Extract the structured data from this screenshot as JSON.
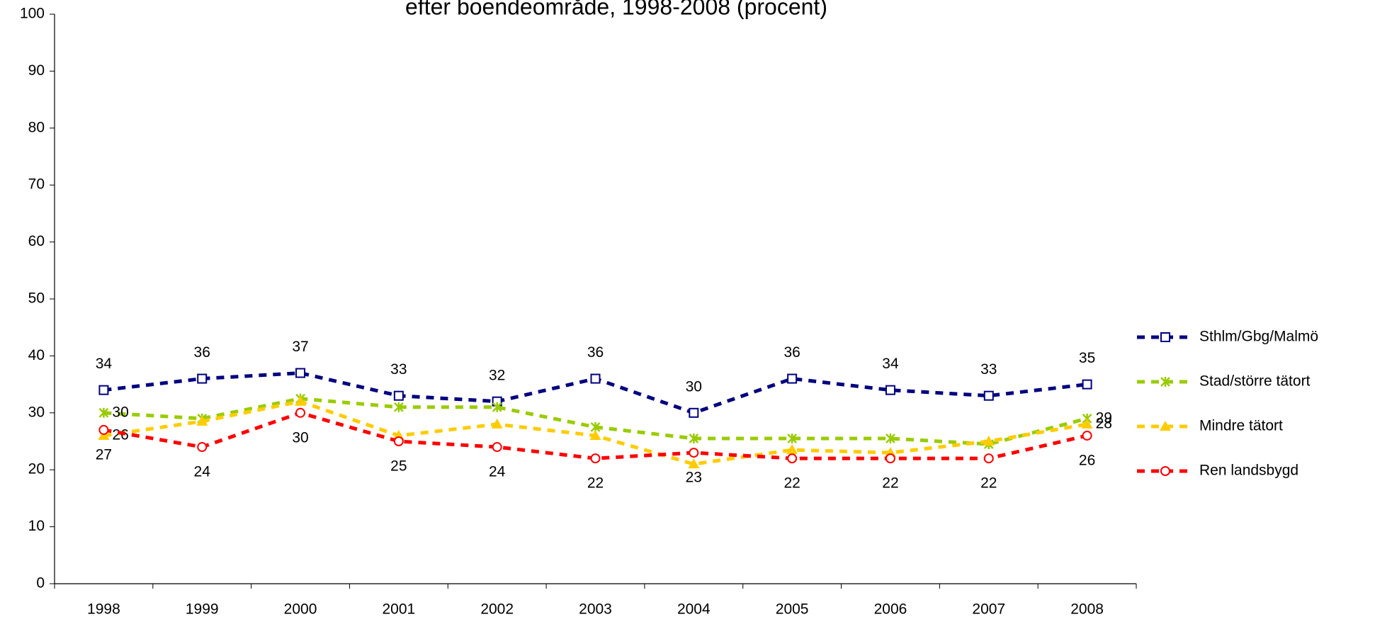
{
  "chart_data": {
    "type": "line",
    "title": "efter boendeområde, 1998-2008 (procent)",
    "categories": [
      "1998",
      "1999",
      "2000",
      "2001",
      "2002",
      "2003",
      "2004",
      "2005",
      "2006",
      "2007",
      "2008"
    ],
    "ylim": [
      0,
      100
    ],
    "yticks": [
      0,
      10,
      20,
      30,
      40,
      50,
      60,
      70,
      80,
      90,
      100
    ],
    "grid": false,
    "legend": "right",
    "series": [
      {
        "name": "Sthlm/Gbg/Malmö",
        "color": "#000080",
        "marker": "square",
        "label_position": "above",
        "labeled": [
          0,
          1,
          2,
          3,
          4,
          5,
          6,
          7,
          8,
          9,
          10
        ],
        "values": [
          34,
          36,
          37,
          33,
          32,
          36,
          30,
          36,
          34,
          33,
          35
        ]
      },
      {
        "name": "Stad/större tätort",
        "color": "#99cc00",
        "marker": "star",
        "label_position": "right",
        "labeled": [
          0,
          10
        ],
        "values": [
          30,
          29,
          32.5,
          31,
          31,
          27.5,
          25.5,
          25.5,
          25.5,
          24.5,
          29
        ]
      },
      {
        "name": "Mindre tätort",
        "color": "#ffcc00",
        "marker": "triangle",
        "label_position": "right",
        "labeled": [
          0,
          10
        ],
        "values": [
          26,
          28.5,
          32,
          26,
          28,
          26,
          21,
          23.5,
          23,
          25,
          28
        ]
      },
      {
        "name": "Ren landsbygd",
        "color": "#ff0000",
        "marker": "circle",
        "label_position": "below",
        "labeled": [
          0,
          1,
          2,
          3,
          4,
          5,
          6,
          7,
          8,
          9,
          10
        ],
        "values": [
          27,
          24,
          30,
          25,
          24,
          22,
          23,
          22,
          22,
          22,
          26
        ]
      }
    ]
  }
}
